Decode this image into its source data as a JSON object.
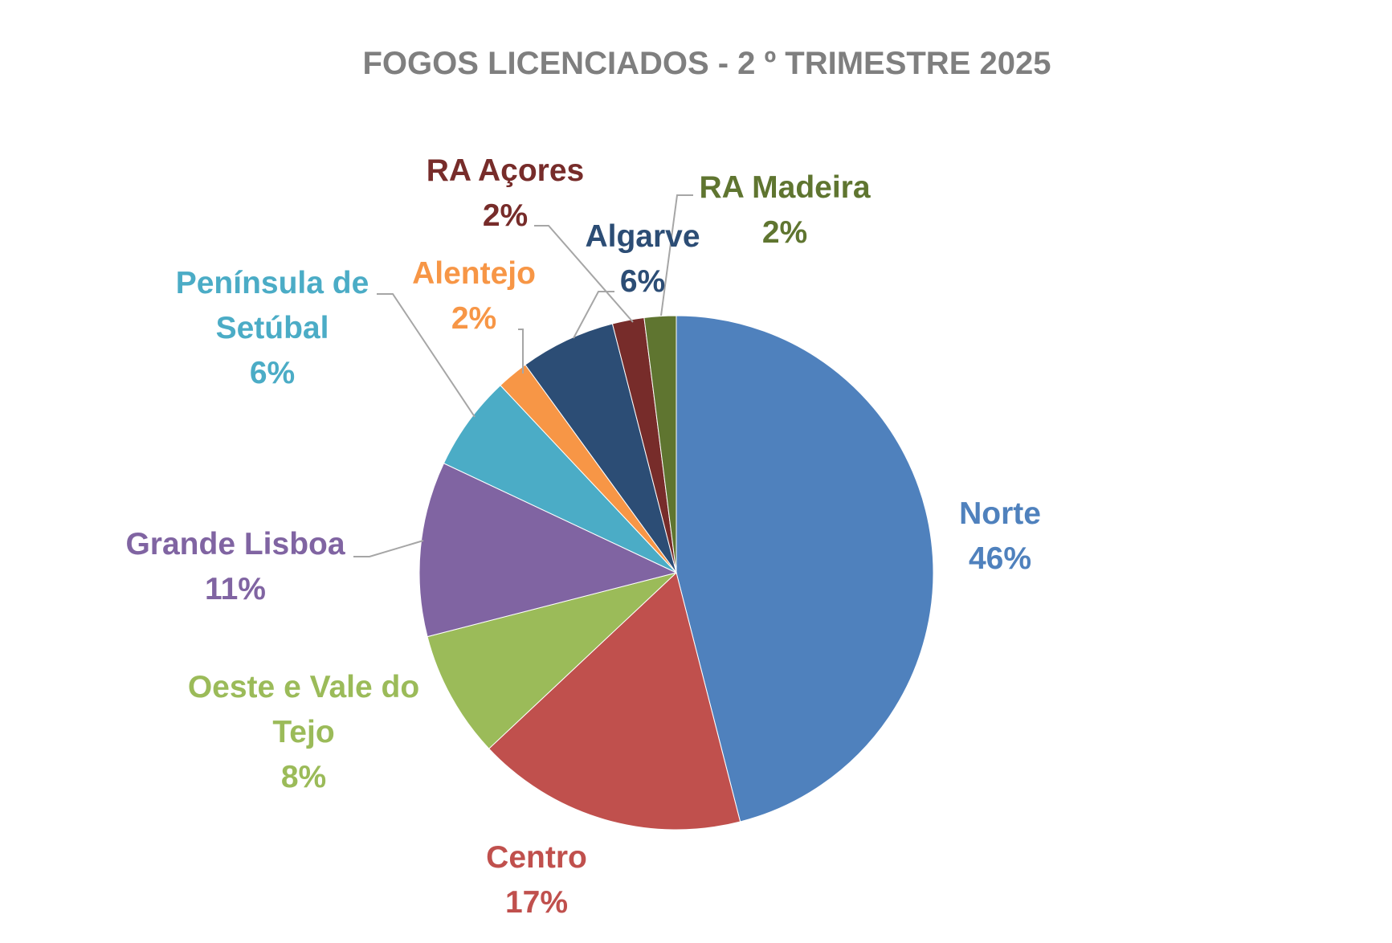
{
  "chart_data": {
    "type": "pie",
    "title": "FOGOS LICENCIADOS  - 2  º TRIMESTRE 2025",
    "legend": "none",
    "slices": [
      {
        "name": "Norte",
        "value": 46,
        "label": "46%",
        "color": "#4F81BD"
      },
      {
        "name": "Centro",
        "value": 17,
        "label": "17%",
        "color": "#C0504D"
      },
      {
        "name": "Oeste e Vale do Tejo",
        "value": 8,
        "label": "8%",
        "color": "#9BBB59"
      },
      {
        "name": "Grande Lisboa",
        "value": 11,
        "label": "11%",
        "color": "#8064A2"
      },
      {
        "name": "Península de Setúbal",
        "value": 6,
        "label": "6%",
        "color": "#4BACC6"
      },
      {
        "name": "Alentejo",
        "value": 2,
        "label": "2%",
        "color": "#F79646"
      },
      {
        "name": "Algarve",
        "value": 6,
        "label": "6%",
        "color": "#2C4D75"
      },
      {
        "name": "RA Açores",
        "value": 2,
        "label": "2%",
        "color": "#772C2A"
      },
      {
        "name": "RA Madeira",
        "value": 2,
        "label": "2%",
        "color": "#5F7530"
      }
    ]
  }
}
